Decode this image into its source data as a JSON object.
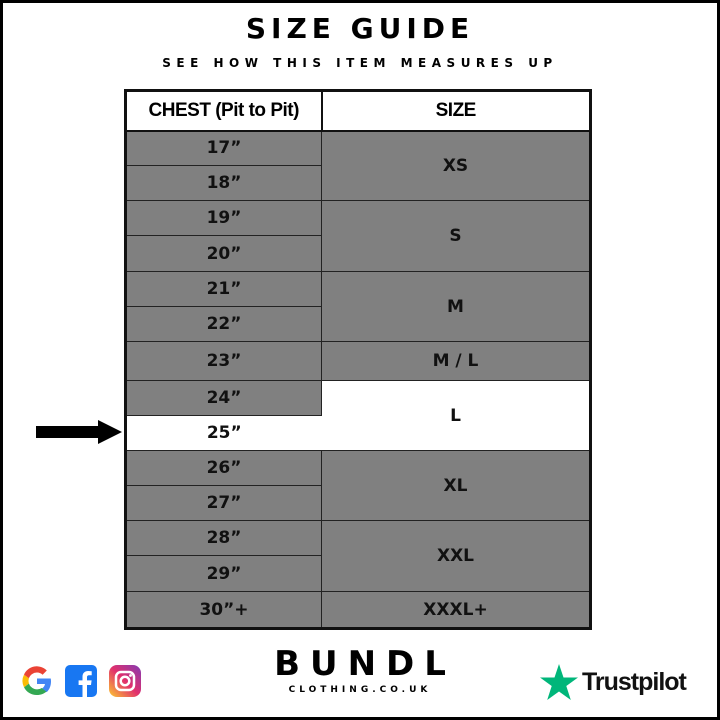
{
  "title": "SIZE GUIDE",
  "subtitle": "SEE HOW THIS ITEM MEASURES UP",
  "table": {
    "headers": [
      "CHEST (Pit to Pit)",
      "SIZE"
    ],
    "rows": [
      {
        "chest": "17”",
        "size": "XS"
      },
      {
        "chest": "18”"
      },
      {
        "chest": "19”",
        "size": "S"
      },
      {
        "chest": "20”"
      },
      {
        "chest": "21”",
        "size": "M"
      },
      {
        "chest": "22”"
      },
      {
        "chest": "23”",
        "size": "M / L"
      },
      {
        "chest": "24”",
        "size": "L"
      },
      {
        "chest": "25”"
      },
      {
        "chest": "26”",
        "size": "XL"
      },
      {
        "chest": "27”"
      },
      {
        "chest": "28”",
        "size": "XXL"
      },
      {
        "chest": "29”"
      },
      {
        "chest": "30”+",
        "size": "XXXL+"
      }
    ],
    "highlighted_chest": "25”",
    "highlighted_size": "L",
    "row_color": "#808080",
    "highlight_color": "#ffffff"
  },
  "footer": {
    "social_icons": [
      "google-icon",
      "facebook-icon",
      "instagram-icon"
    ],
    "brand": "BUNDL",
    "brand_sub": "CLOTHING.CO.UK",
    "trustpilot": "Trustpilot",
    "trustpilot_color": "#00b67a"
  }
}
